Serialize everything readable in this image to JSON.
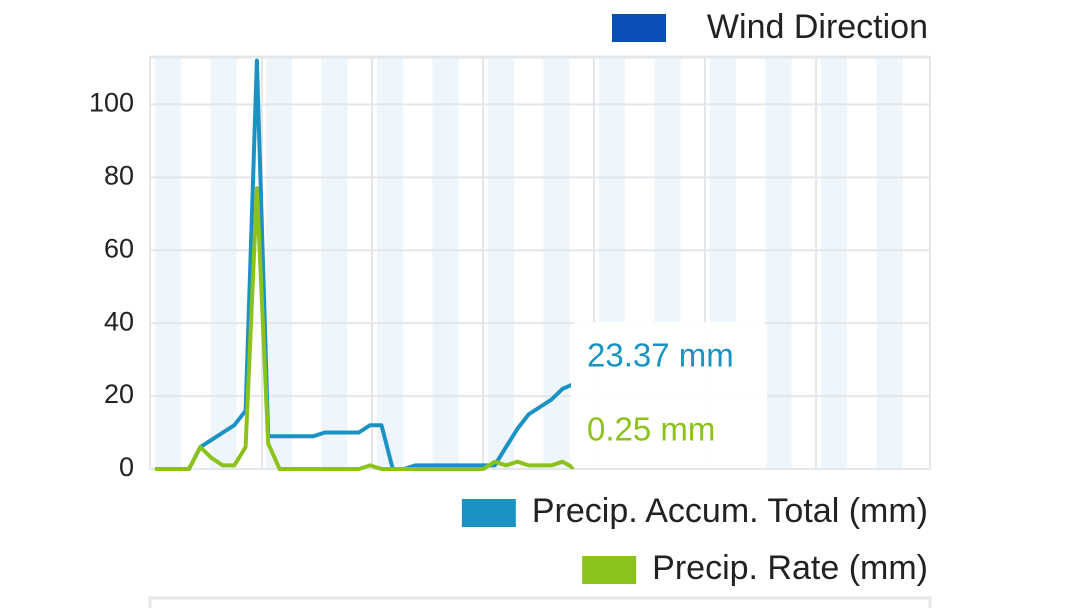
{
  "chart_data": {
    "type": "line",
    "top_legend": {
      "name": "Wind Direction",
      "color": "#0a4fb5"
    },
    "ylim": [
      0,
      113
    ],
    "yticks": [
      0,
      20,
      40,
      60,
      80,
      100
    ],
    "grid": true,
    "series": [
      {
        "name": "Precip. Accum. Total (mm)",
        "color": "#1a93c4",
        "values": [
          0,
          0,
          0,
          0,
          6,
          8,
          10,
          12,
          16,
          112,
          9,
          9,
          9,
          9,
          9,
          10,
          10,
          10,
          10,
          12,
          12,
          0,
          0,
          1,
          1,
          1,
          1,
          1,
          1,
          1,
          1,
          6,
          11,
          15,
          17,
          19,
          22,
          23.37,
          null,
          null,
          null,
          null,
          null,
          null,
          null,
          null,
          null,
          null,
          null,
          null,
          null,
          null,
          null,
          null,
          null,
          null,
          null,
          null,
          null,
          null,
          null,
          null,
          null,
          null,
          null,
          null,
          null,
          null,
          null
        ]
      },
      {
        "name": "Precip. Rate (mm)",
        "color": "#8cc21c",
        "values": [
          0,
          0,
          0,
          0,
          6,
          3,
          1,
          1,
          6,
          77,
          7,
          0,
          0,
          0,
          0,
          0,
          0,
          0,
          0,
          1,
          0,
          0,
          0,
          0,
          0,
          0,
          0,
          0,
          0,
          0,
          2,
          1,
          2,
          1,
          1,
          1,
          2,
          0.25,
          null,
          null,
          null,
          null,
          null,
          null,
          null,
          null,
          null,
          null,
          null,
          null,
          null,
          null,
          null,
          null,
          null,
          null,
          null,
          null,
          null,
          null,
          null,
          null,
          null,
          null,
          null,
          null,
          null,
          null,
          null
        ]
      }
    ],
    "tooltip": [
      "23.37 mm",
      "0.25 mm"
    ]
  }
}
